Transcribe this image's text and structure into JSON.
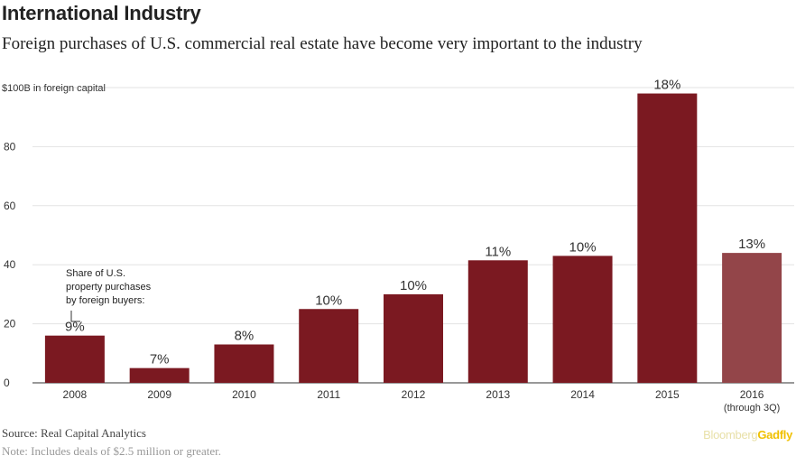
{
  "header": {
    "title": "International Industry",
    "subtitle": "Foreign purchases of U.S. commercial real estate have become very important to the industry"
  },
  "chart_data": {
    "type": "bar",
    "ylabel": "$100B in foreign capital",
    "ylim": [
      0,
      100
    ],
    "yticks": [
      0,
      20,
      40,
      60,
      80
    ],
    "gridlines": true,
    "categories": [
      "2008",
      "2009",
      "2010",
      "2011",
      "2012",
      "2013",
      "2014",
      "2015",
      "2016"
    ],
    "category_sublabels": [
      "",
      "",
      "",
      "",
      "",
      "",
      "",
      "",
      "(through 3Q)"
    ],
    "values": [
      16,
      5,
      13,
      25,
      30,
      41.5,
      43,
      98,
      44
    ],
    "data_labels": [
      "9%",
      "7%",
      "8%",
      "10%",
      "10%",
      "11%",
      "10%",
      "18%",
      "13%"
    ],
    "bar_colors": [
      "#7b1921",
      "#7b1921",
      "#7b1921",
      "#7b1921",
      "#7b1921",
      "#7b1921",
      "#7b1921",
      "#7b1921",
      "#934549"
    ],
    "annotation": {
      "lines": [
        "Share of U.S.",
        "property purchases",
        "by foreign buyers:"
      ],
      "target_category": "2008"
    }
  },
  "footer": {
    "source": "Source: Real Capital Analytics",
    "note": "Note: Includes deals of $2.5 million or greater.",
    "brand_part1": "Bloomberg",
    "brand_part2": "Gadfly"
  }
}
